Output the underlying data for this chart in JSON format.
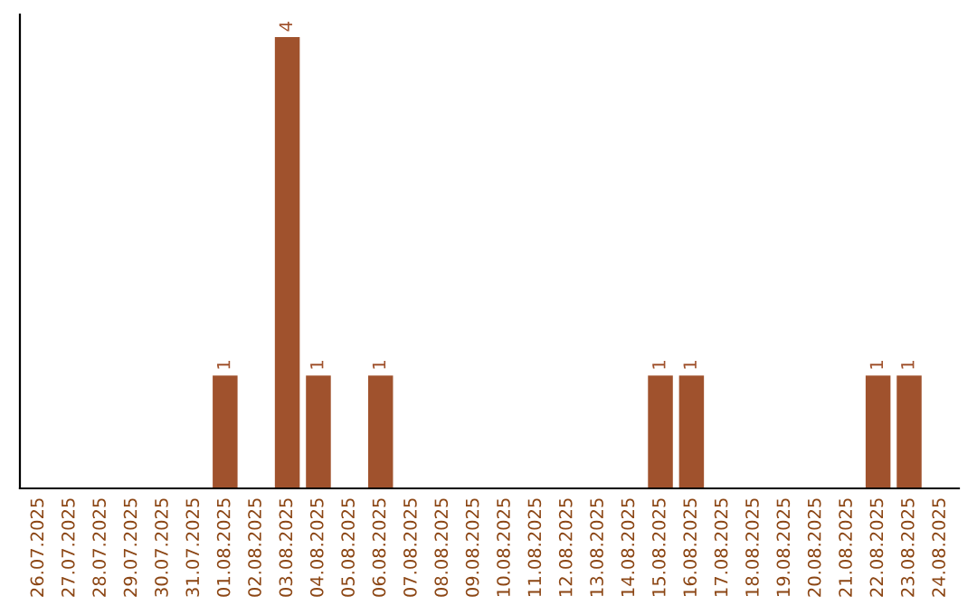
{
  "chart_data": {
    "type": "bar",
    "categories": [
      "26.07.2025",
      "27.07.2025",
      "28.07.2025",
      "29.07.2025",
      "30.07.2025",
      "31.07.2025",
      "01.08.2025",
      "02.08.2025",
      "03.08.2025",
      "04.08.2025",
      "05.08.2025",
      "06.08.2025",
      "07.08.2025",
      "08.08.2025",
      "09.08.2025",
      "10.08.2025",
      "11.08.2025",
      "12.08.2025",
      "13.08.2025",
      "14.08.2025",
      "15.08.2025",
      "16.08.2025",
      "17.08.2025",
      "18.08.2025",
      "19.08.2025",
      "20.08.2025",
      "21.08.2025",
      "22.08.2025",
      "23.08.2025",
      "24.08.2025"
    ],
    "values": [
      0,
      0,
      0,
      0,
      0,
      0,
      1,
      0,
      4,
      1,
      0,
      1,
      0,
      0,
      0,
      0,
      0,
      0,
      0,
      0,
      1,
      1,
      0,
      0,
      0,
      0,
      0,
      1,
      1,
      0
    ],
    "value_labels": [
      null,
      null,
      null,
      null,
      null,
      null,
      "1",
      null,
      "4",
      "1",
      null,
      "1",
      null,
      null,
      null,
      null,
      null,
      null,
      null,
      null,
      "1",
      "1",
      null,
      null,
      null,
      null,
      null,
      "1",
      "1",
      null
    ],
    "color": "#a0522d",
    "tick_labels": "x",
    "grid": false,
    "legend": false
  }
}
